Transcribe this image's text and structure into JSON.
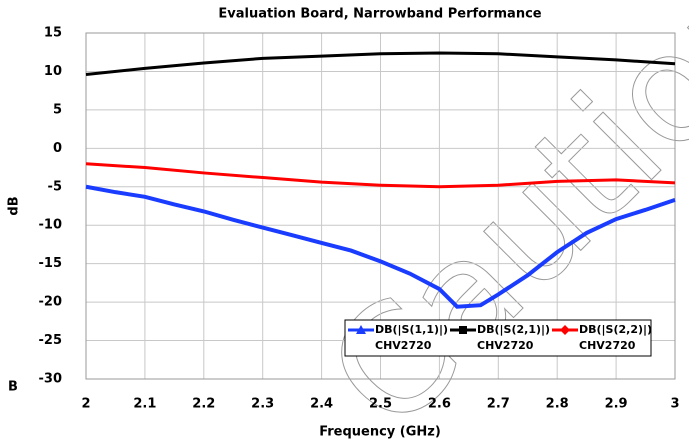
{
  "chart_data": {
    "type": "line",
    "title": "Evaluation Board, Narrowband Performance",
    "x_label": "Frequency (GHz)",
    "y_label": "dB",
    "stray_text": "B",
    "xlim": [
      2,
      3
    ],
    "xticks": [
      2,
      2.1,
      2.2,
      2.3,
      2.4,
      2.5,
      2.6,
      2.7,
      2.8,
      2.9,
      3
    ],
    "ylim": [
      -30,
      15
    ],
    "yticks": [
      15,
      10,
      5,
      0,
      -5,
      -10,
      -15,
      -20,
      -25,
      -30
    ],
    "grid": true,
    "series": [
      {
        "name": "DB(|S(1,1)|)",
        "source": "CHV2720",
        "color": "#1a3cff",
        "x": [
          2.0,
          2.05,
          2.1,
          2.15,
          2.2,
          2.25,
          2.3,
          2.35,
          2.4,
          2.45,
          2.5,
          2.55,
          2.6,
          2.63,
          2.67,
          2.7,
          2.75,
          2.8,
          2.85,
          2.9,
          2.95,
          3.0
        ],
        "values": [
          -5,
          -5.7,
          -6.3,
          -7.3,
          -8.2,
          -9.3,
          -10.3,
          -11.3,
          -12.3,
          -13.3,
          -14.7,
          -16.3,
          -18.3,
          -20.6,
          -20.4,
          -19,
          -16.5,
          -13.5,
          -11,
          -9.2,
          -8,
          -6.7
        ]
      },
      {
        "name": "DB(|S(2,1)|)",
        "source": "CHV2720",
        "color": "#000000",
        "x": [
          2.0,
          2.1,
          2.2,
          2.3,
          2.4,
          2.5,
          2.6,
          2.7,
          2.8,
          2.9,
          3.0
        ],
        "values": [
          9.6,
          10.4,
          11.1,
          11.7,
          12.0,
          12.3,
          12.4,
          12.3,
          11.9,
          11.5,
          11.0
        ]
      },
      {
        "name": "DB(|S(2,2)|)",
        "source": "CHV2720",
        "color": "#ff0000",
        "x": [
          2.0,
          2.1,
          2.2,
          2.3,
          2.4,
          2.5,
          2.6,
          2.7,
          2.8,
          2.9,
          3.0
        ],
        "values": [
          -2,
          -2.5,
          -3.2,
          -3.8,
          -4.4,
          -4.8,
          -5.0,
          -4.8,
          -4.3,
          -4.1,
          -4.5
        ]
      }
    ]
  }
}
